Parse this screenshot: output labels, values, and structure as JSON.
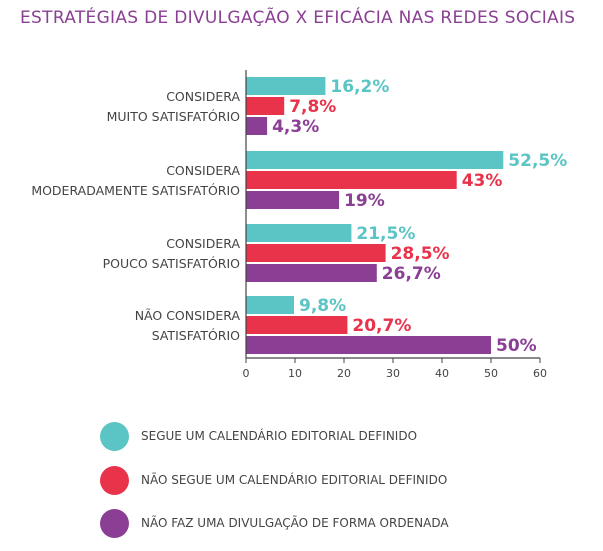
{
  "chart_data": {
    "type": "bar",
    "orientation": "horizontal",
    "title": "ESTRATÉGIAS DE DIVULGAÇÃO X EFICÁCIA NAS REDES SOCIAIS",
    "categories": [
      [
        "CONSIDERA",
        "MUITO SATISFATÓRIO"
      ],
      [
        "CONSIDERA",
        "MODERADAMENTE SATISFATÓRIO"
      ],
      [
        "CONSIDERA",
        "POUCO SATISFATÓRIO"
      ],
      [
        "NÃO CONSIDERA",
        "SATISFATÓRIO"
      ]
    ],
    "series": [
      {
        "name": "SEGUE UM CALENDÁRIO EDITORIAL DEFINIDO",
        "color": "#5bc4c4",
        "values": [
          16.2,
          52.5,
          21.5,
          9.8
        ],
        "labels": [
          "16,2%",
          "52,5%",
          "21,5%",
          "9,8%"
        ]
      },
      {
        "name": "NÃO SEGUE UM CALENDÁRIO EDITORIAL DEFINIDO",
        "color": "#e8334a",
        "values": [
          7.8,
          43,
          28.5,
          20.7
        ],
        "labels": [
          "7,8%",
          "43%",
          "28,5%",
          "20,7%"
        ]
      },
      {
        "name": "NÃO FAZ UMA DIVULGAÇÃO DE FORMA ORDENADA",
        "color": "#8b3f94",
        "values": [
          4.3,
          19,
          26.7,
          50
        ],
        "labels": [
          "4,3%",
          "19%",
          "26,7%",
          "50%"
        ]
      }
    ],
    "xlim": [
      0,
      60
    ],
    "xticks": [
      0,
      10,
      20,
      30,
      40,
      50,
      60
    ],
    "grid": false,
    "legend": "bottom",
    "title_color": "#8b3f94"
  }
}
